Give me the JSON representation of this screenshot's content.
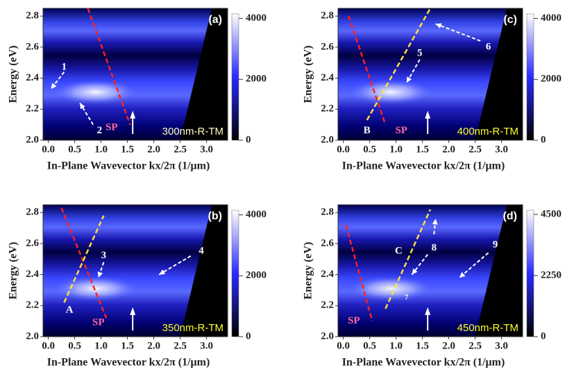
{
  "chart_data": [
    {
      "type": "heatmap",
      "panel_label": "(a)",
      "sample_label": "300nm-R-TM",
      "xlabel": "In-Plane Wavevector kx/2π (1/μm)",
      "ylabel": "Energy (eV)",
      "xlim": [
        -0.1,
        3.4
      ],
      "xticks": [
        {
          "value": 0,
          "label": "0.0"
        },
        0.5,
        {
          "value": 1,
          "label": "1.0"
        },
        1.5,
        {
          "value": 2,
          "label": "2.0"
        },
        2.5,
        {
          "value": 3,
          "label": "3.0"
        }
      ],
      "ylim": [
        2.0,
        2.85
      ],
      "yticks": [
        {
          "value": 2,
          "label": "2.0"
        },
        2.2,
        2.4,
        2.6,
        2.8
      ],
      "clim": [
        0,
        4150
      ],
      "cticks": [
        0,
        2000,
        4000
      ],
      "annotations": [
        "1",
        "2",
        "SP"
      ]
    },
    {
      "type": "heatmap",
      "panel_label": "(c)",
      "sample_label": "400nm-R-TM",
      "xlabel": "In-Plane Wavevector kx/2π (1/μm)",
      "ylabel": "Energy (eV)",
      "xlim": [
        -0.1,
        3.4
      ],
      "xticks": [
        {
          "value": 0,
          "label": "0.0"
        },
        0.5,
        {
          "value": 1,
          "label": "1.0"
        },
        1.5,
        {
          "value": 2,
          "label": "2.0"
        },
        2.5,
        {
          "value": 3,
          "label": "3.0"
        }
      ],
      "ylim": [
        2.0,
        2.85
      ],
      "yticks": [
        {
          "value": 2,
          "label": "2.0"
        },
        2.2,
        2.4,
        2.6,
        2.8
      ],
      "clim": [
        0,
        4150
      ],
      "cticks": [
        0,
        2000,
        4000
      ],
      "annotations": [
        "5",
        "6",
        "B",
        "SP"
      ]
    },
    {
      "type": "heatmap",
      "panel_label": "(b)",
      "sample_label": "350nm-R-TM",
      "xlabel": "In-Plane Wavevector kx/2π (1/μm)",
      "ylabel": "Energy (eV)",
      "xlim": [
        -0.1,
        3.4
      ],
      "xticks": [
        {
          "value": 0,
          "label": "0.0"
        },
        0.5,
        {
          "value": 1,
          "label": "1.0"
        },
        1.5,
        {
          "value": 2,
          "label": "2.0"
        },
        2.5,
        {
          "value": 3,
          "label": "3.0"
        }
      ],
      "ylim": [
        2.0,
        2.85
      ],
      "yticks": [
        {
          "value": 2,
          "label": "2.0"
        },
        2.2,
        2.4,
        2.6,
        2.8
      ],
      "clim": [
        0,
        4150
      ],
      "cticks": [
        0,
        2000,
        4000
      ],
      "annotations": [
        "3",
        "4",
        "A",
        "SP"
      ]
    },
    {
      "type": "heatmap",
      "panel_label": "(d)",
      "sample_label": "450nm-R-TM",
      "xlabel": "In-Plane Wavevector kx/2π (1/μm)",
      "ylabel": "Energy (eV)",
      "xlim": [
        -0.1,
        3.4
      ],
      "xticks": [
        {
          "value": 0,
          "label": "0.0"
        },
        0.5,
        {
          "value": 1,
          "label": "1.0"
        },
        1.5,
        {
          "value": 2,
          "label": "2.0"
        },
        2.5,
        {
          "value": 3,
          "label": "3.0"
        }
      ],
      "ylim": [
        2.0,
        2.85
      ],
      "yticks": [
        {
          "value": 2,
          "label": "2.0"
        },
        2.2,
        2.4,
        2.6,
        2.8
      ],
      "clim": [
        0,
        4650
      ],
      "cticks": [
        0,
        2250,
        4500
      ],
      "annotations": [
        "C",
        "8",
        "9",
        "SP",
        "7"
      ]
    }
  ]
}
